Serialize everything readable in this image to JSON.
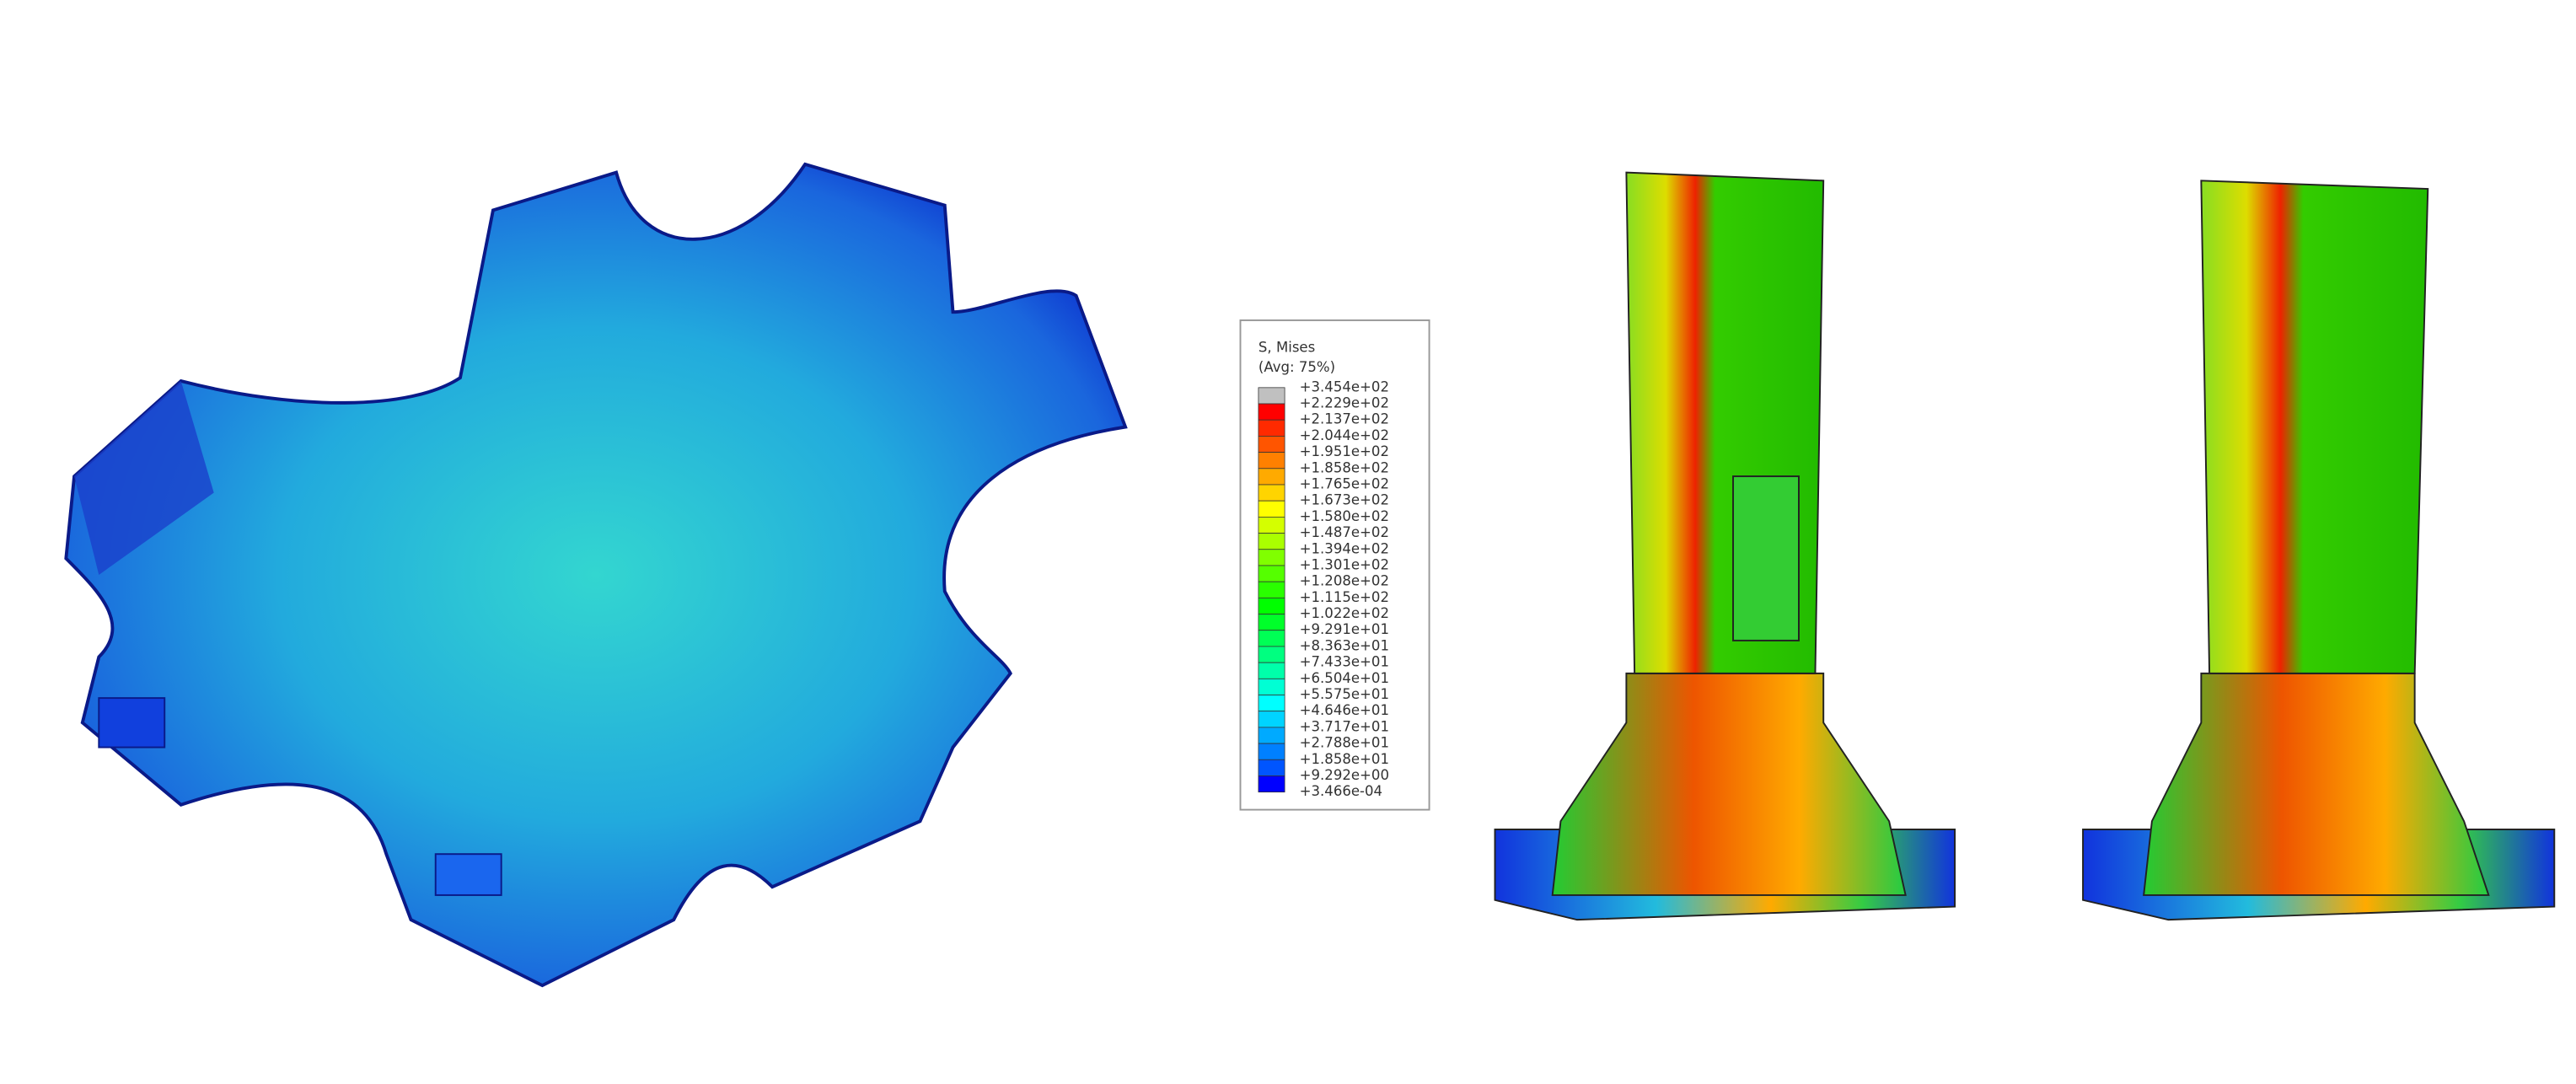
{
  "legend": {
    "title": "S, Mises",
    "subtitle": "(Avg: 75%)",
    "labels": [
      "+3.454e+02",
      "+2.229e+02",
      "+2.137e+02",
      "+2.044e+02",
      "+1.951e+02",
      "+1.858e+02",
      "+1.765e+02",
      "+1.673e+02",
      "+1.580e+02",
      "+1.487e+02",
      "+1.394e+02",
      "+1.301e+02",
      "+1.208e+02",
      "+1.115e+02",
      "+1.022e+02",
      "+9.291e+01",
      "+8.363e+01",
      "+7.433e+01",
      "+6.504e+01",
      "+5.575e+01",
      "+4.646e+01",
      "+3.717e+01",
      "+2.788e+01",
      "+1.858e+01",
      "+9.292e+00",
      "+3.466e-04"
    ],
    "colors": [
      "#c0c0c0",
      "#ff0000",
      "#ff2a00",
      "#ff5500",
      "#ff8000",
      "#ffaa00",
      "#ffd400",
      "#ffff00",
      "#d4ff00",
      "#aaff00",
      "#80ff00",
      "#55ff00",
      "#2aff00",
      "#00ff00",
      "#00ff2a",
      "#00ff55",
      "#00ff80",
      "#00ffaa",
      "#00ffd4",
      "#00ffff",
      "#00d4ff",
      "#00aaff",
      "#0080ff",
      "#0055ff",
      "#0000ff"
    ]
  }
}
